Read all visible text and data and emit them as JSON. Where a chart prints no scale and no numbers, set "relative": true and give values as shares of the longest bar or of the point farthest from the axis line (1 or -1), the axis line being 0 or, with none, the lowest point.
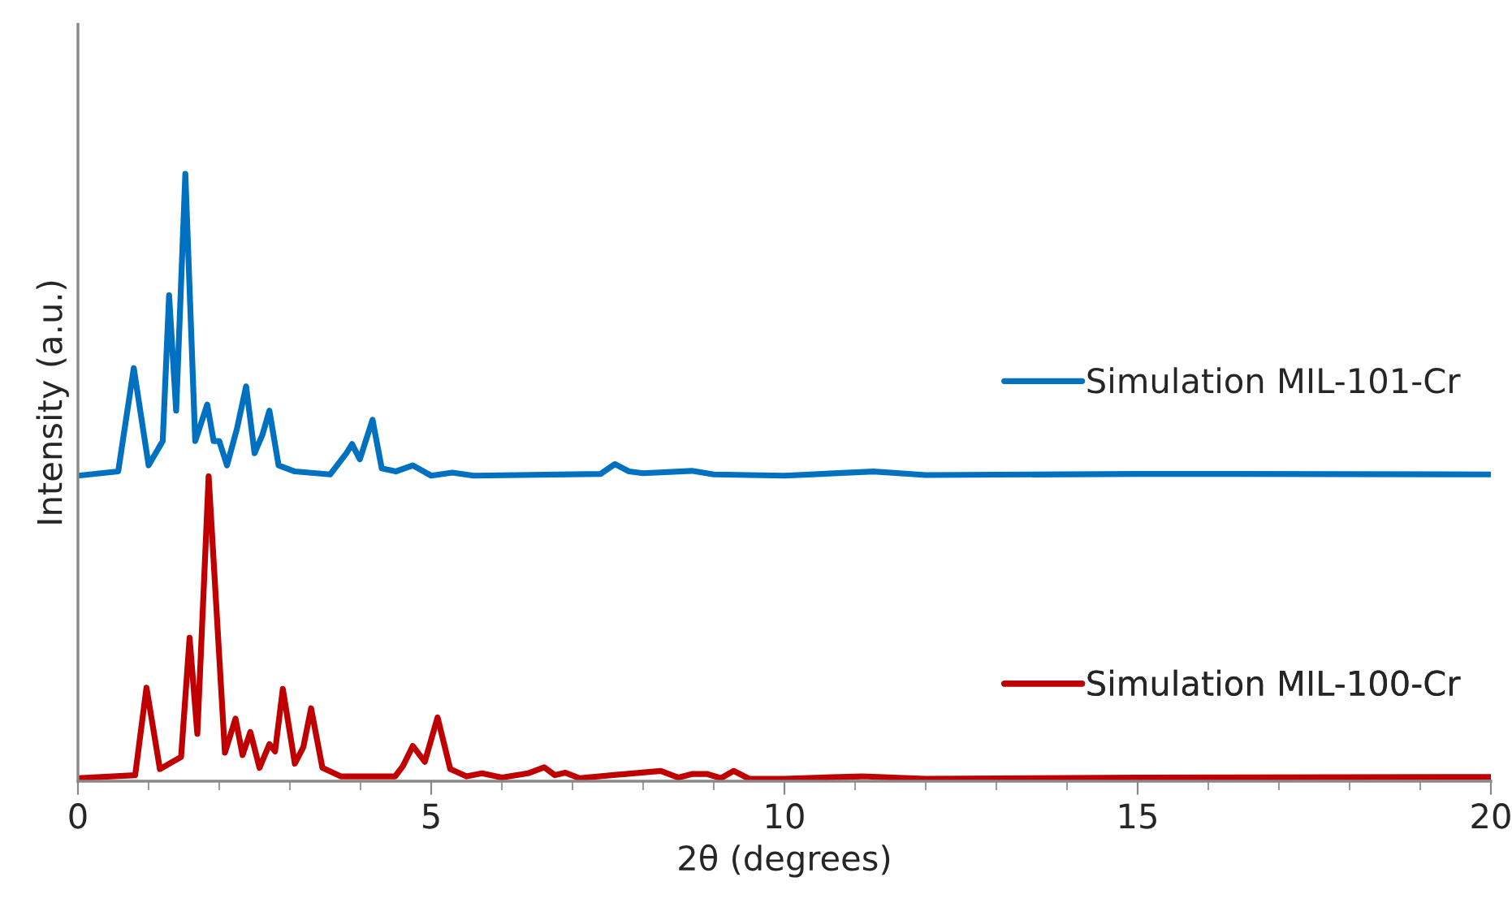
{
  "chart_data": {
    "type": "line",
    "relative": true,
    "xlabel": "2θ (degrees)",
    "ylabel": "Intensity (a.u.)",
    "xlim": [
      0,
      20
    ],
    "xticks": [
      0,
      5,
      10,
      15,
      20
    ],
    "grid": false,
    "legend": "right",
    "tick_labels": "x",
    "series": [
      {
        "name": "Simulation MIL-101-Cr",
        "color": "#0070c0",
        "x": [
          0,
          0.57,
          0.79,
          1.0,
          1.2,
          1.29,
          1.39,
          1.52,
          1.66,
          1.83,
          1.92,
          2.0,
          2.11,
          2.25,
          2.38,
          2.5,
          2.61,
          2.71,
          2.84,
          3.07,
          3.57,
          3.8,
          3.88,
          3.99,
          4.17,
          4.3,
          4.5,
          4.74,
          5.0,
          5.3,
          5.6,
          7.4,
          7.6,
          7.8,
          8.0,
          8.69,
          9.0,
          10,
          11.26,
          12,
          15,
          20
        ],
        "values": [
          0.503,
          0.51,
          0.68,
          0.52,
          0.56,
          0.8,
          0.61,
          1.0,
          0.56,
          0.62,
          0.56,
          0.56,
          0.52,
          0.58,
          0.65,
          0.54,
          0.57,
          0.61,
          0.52,
          0.51,
          0.505,
          0.54,
          0.555,
          0.53,
          0.595,
          0.515,
          0.51,
          0.52,
          0.503,
          0.508,
          0.503,
          0.506,
          0.522,
          0.51,
          0.507,
          0.511,
          0.505,
          0.503,
          0.51,
          0.504,
          0.506,
          0.505
        ]
      },
      {
        "name": "Simulation MIL-100-Cr",
        "color": "#c00000",
        "x": [
          0,
          0.81,
          0.97,
          1.16,
          1.46,
          1.58,
          1.69,
          1.85,
          2.08,
          2.23,
          2.33,
          2.44,
          2.57,
          2.71,
          2.79,
          2.9,
          3.07,
          3.19,
          3.3,
          3.46,
          3.72,
          4.49,
          4.6,
          4.74,
          4.91,
          5.09,
          5.27,
          5.5,
          5.72,
          6.0,
          6.37,
          6.6,
          6.75,
          6.9,
          7.1,
          8.25,
          8.5,
          8.7,
          8.9,
          9.1,
          9.28,
          9.5,
          10,
          11.1,
          12,
          15,
          20
        ],
        "values": [
          0.005,
          0.01,
          0.154,
          0.02,
          0.04,
          0.236,
          0.078,
          0.502,
          0.047,
          0.103,
          0.043,
          0.081,
          0.022,
          0.061,
          0.049,
          0.152,
          0.029,
          0.056,
          0.12,
          0.022,
          0.008,
          0.008,
          0.025,
          0.058,
          0.032,
          0.105,
          0.02,
          0.008,
          0.013,
          0.006,
          0.013,
          0.023,
          0.01,
          0.014,
          0.005,
          0.017,
          0.006,
          0.012,
          0.012,
          0.005,
          0.017,
          0.004,
          0.004,
          0.008,
          0.004,
          0.006,
          0.007
        ]
      }
    ]
  }
}
